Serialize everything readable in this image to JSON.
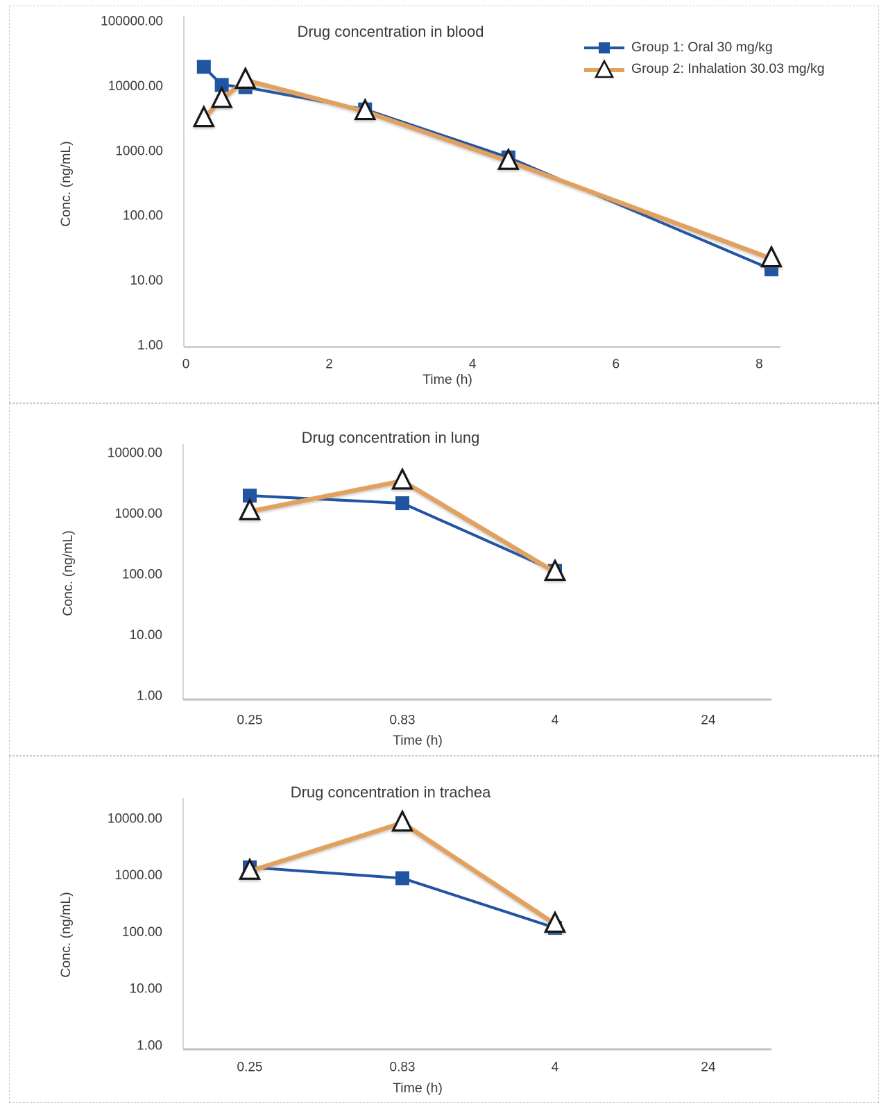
{
  "page": {
    "background": "#ffffff",
    "panel_border_color": "#c8c8c8",
    "text_color": "#3a3a3a",
    "axis_line_color": "#c9c9c9"
  },
  "legend": {
    "position": "top-right-of-first-chart"
  },
  "chart_data": [
    {
      "type": "line",
      "title": "Drug concentration in blood",
      "xlabel": "Time (h)",
      "ylabel": "Conc. (ng/mL)",
      "x_axis": {
        "scale": "linear",
        "ticks": [
          0,
          2,
          4,
          6,
          8
        ],
        "range": [
          0,
          8.6
        ]
      },
      "y_axis": {
        "scale": "log",
        "min": 1,
        "max": 100000,
        "tick_labels": [
          "100000.00",
          "10000.00",
          "1000.00",
          "100.00",
          "10.00",
          "1.00"
        ]
      },
      "grid": false,
      "legend_visible": true,
      "series": [
        {
          "name": "Group 1: Oral 30 mg/kg",
          "marker": "filled-square",
          "color": "#2154a1",
          "x": [
            0.25,
            0.5,
            0.83,
            2.5,
            4.5,
            8.17
          ],
          "y": [
            20000,
            10500,
            9700,
            4400,
            800,
            15
          ]
        },
        {
          "name": "Group 2: Inhalation 30.03 mg/kg",
          "marker": "open-triangle",
          "color": "#e2a25f",
          "x": [
            0.25,
            0.5,
            0.83,
            2.5,
            4.5,
            8.17
          ],
          "y": [
            3200,
            6300,
            12500,
            4100,
            700,
            22
          ]
        }
      ]
    },
    {
      "type": "line",
      "title": "Drug concentration in lung",
      "xlabel": "Time (h)",
      "ylabel": "Conc. (ng/mL)",
      "x_axis": {
        "scale": "category",
        "categories": [
          "0.25",
          "0.83",
          "4",
          "24"
        ]
      },
      "y_axis": {
        "scale": "log",
        "min": 1,
        "max": 10000,
        "tick_labels": [
          "10000.00",
          "1000.00",
          "100.00",
          "10.00",
          "1.00"
        ]
      },
      "grid": false,
      "legend_visible": false,
      "series": [
        {
          "name": "Group 1: Oral 30 mg/kg",
          "marker": "filled-square",
          "color": "#2154a1",
          "categories": [
            "0.25",
            "0.83",
            "4"
          ],
          "y": [
            2000,
            1500,
            115
          ]
        },
        {
          "name": "Group 2: Inhalation 30.03 mg/kg",
          "marker": "open-triangle",
          "color": "#e2a25f",
          "categories": [
            "0.25",
            "0.83",
            "4"
          ],
          "y": [
            1100,
            3500,
            110
          ]
        }
      ]
    },
    {
      "type": "line",
      "title": "Drug concentration in trachea",
      "xlabel": "Time (h)",
      "ylabel": "Conc. (ng/mL)",
      "x_axis": {
        "scale": "category",
        "categories": [
          "0.25",
          "0.83",
          "4",
          "24"
        ]
      },
      "y_axis": {
        "scale": "log",
        "min": 1,
        "max": 10000,
        "tick_labels": [
          "10000.00",
          "1000.00",
          "100.00",
          "10.00",
          "1.00"
        ]
      },
      "grid": false,
      "legend_visible": false,
      "series": [
        {
          "name": "Group 1: Oral 30 mg/kg",
          "marker": "filled-square",
          "color": "#2154a1",
          "categories": [
            "0.25",
            "0.83",
            "4"
          ],
          "y": [
            1400,
            900,
            120
          ]
        },
        {
          "name": "Group 2: Inhalation 30.03 mg/kg",
          "marker": "open-triangle",
          "color": "#e2a25f",
          "categories": [
            "0.25",
            "0.83",
            "4"
          ],
          "y": [
            1200,
            8500,
            140
          ]
        }
      ]
    }
  ]
}
